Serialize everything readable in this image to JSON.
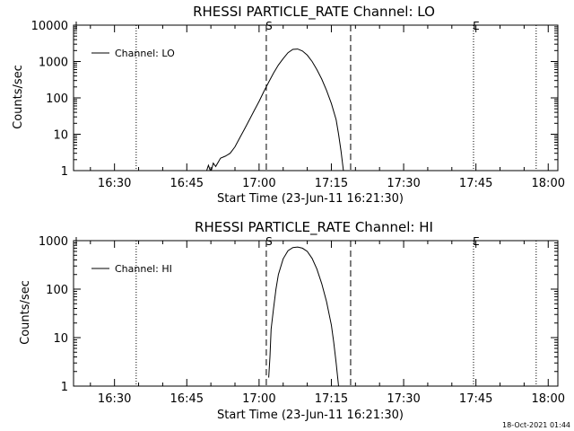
{
  "chart_data": [
    {
      "type": "line",
      "title": "RHESSI PARTICLE_RATE Channel: LO",
      "xlabel": "Start Time (23-Jun-11 16:21:30)",
      "ylabel": "Counts/sec",
      "x_scale": "time",
      "y_scale": "log",
      "xlim": [
        "16:21:30",
        "18:02:00"
      ],
      "ylim": [
        1,
        10000
      ],
      "x_ticks": [
        "16:30",
        "16:45",
        "17:00",
        "17:15",
        "17:30",
        "17:45",
        "18:00"
      ],
      "y_ticks": [
        "1",
        "10",
        "100",
        "1000",
        "10000"
      ],
      "legend": {
        "position": "top-left",
        "entries": [
          "Channel: LO"
        ]
      },
      "series": [
        {
          "name": "Channel: LO",
          "x": [
            "16:49:00",
            "16:49:30",
            "16:50:00",
            "16:50:30",
            "16:51:00",
            "16:52:00",
            "16:53:00",
            "16:54:00",
            "16:55:00",
            "16:56:00",
            "16:57:00",
            "16:58:00",
            "16:59:00",
            "17:00:00",
            "17:01:00",
            "17:02:00",
            "17:03:00",
            "17:04:00",
            "17:05:00",
            "17:06:00",
            "17:07:00",
            "17:08:00",
            "17:09:00",
            "17:10:00",
            "17:11:00",
            "17:12:00",
            "17:13:00",
            "17:14:00",
            "17:15:00",
            "17:16:00",
            "17:16:30",
            "17:17:00",
            "17:17:30"
          ],
          "y": [
            0.9,
            1.4,
            0.9,
            1.6,
            1.3,
            2.2,
            2.5,
            3.0,
            4.5,
            8.0,
            14,
            25,
            45,
            80,
            150,
            270,
            480,
            800,
            1200,
            1750,
            2150,
            2200,
            1950,
            1500,
            1000,
            600,
            330,
            160,
            70,
            25,
            10,
            3.5,
            1
          ]
        }
      ],
      "markers": [
        {
          "label": "S",
          "time": "17:01:30",
          "style": "dashed"
        },
        {
          "label": "",
          "time": "17:19:00",
          "style": "dashed"
        },
        {
          "label": "",
          "time": "16:34:30",
          "style": "dotted"
        },
        {
          "label": "E",
          "time": "17:44:30",
          "style": "dotted"
        },
        {
          "label": "",
          "time": "17:57:30",
          "style": "dotted"
        }
      ]
    },
    {
      "type": "line",
      "title": "RHESSI PARTICLE_RATE Channel: HI",
      "xlabel": "Start Time (23-Jun-11 16:21:30)",
      "ylabel": "Counts/sec",
      "x_scale": "time",
      "y_scale": "log",
      "xlim": [
        "16:21:30",
        "18:02:00"
      ],
      "ylim": [
        1,
        1000
      ],
      "x_ticks": [
        "16:30",
        "16:45",
        "17:00",
        "17:15",
        "17:30",
        "17:45",
        "18:00"
      ],
      "y_ticks": [
        "1",
        "10",
        "100",
        "1000"
      ],
      "legend": {
        "position": "top-left",
        "entries": [
          "Channel: HI"
        ]
      },
      "series": [
        {
          "name": "Channel: HI",
          "x": [
            "17:02:00",
            "17:02:15",
            "17:02:30",
            "17:03:00",
            "17:03:30",
            "17:04:00",
            "17:05:00",
            "17:06:00",
            "17:07:00",
            "17:08:00",
            "17:09:00",
            "17:10:00",
            "17:11:00",
            "17:12:00",
            "17:13:00",
            "17:14:00",
            "17:15:00",
            "17:15:30",
            "17:16:00",
            "17:16:30"
          ],
          "y": [
            1.5,
            4,
            15,
            40,
            100,
            200,
            420,
            620,
            720,
            740,
            700,
            600,
            430,
            260,
            130,
            55,
            18,
            8,
            3,
            1
          ]
        }
      ],
      "markers": [
        {
          "label": "S",
          "time": "17:01:30",
          "style": "dashed"
        },
        {
          "label": "",
          "time": "17:19:00",
          "style": "dashed"
        },
        {
          "label": "",
          "time": "16:34:30",
          "style": "dotted"
        },
        {
          "label": "E",
          "time": "17:44:30",
          "style": "dotted"
        },
        {
          "label": "",
          "time": "17:57:30",
          "style": "dotted"
        }
      ]
    }
  ],
  "footer": {
    "timestamp": "18-Oct-2021 01:44"
  }
}
